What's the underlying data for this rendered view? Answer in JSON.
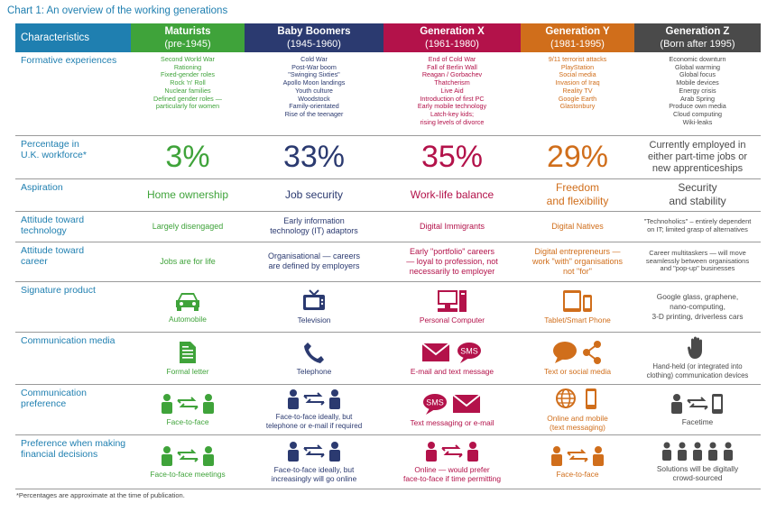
{
  "title": "Chart 1: An overview of the working generations",
  "footnote": "*Percentages are approximate at the time of publication.",
  "headers": {
    "characteristics": "Characteristics",
    "generations": [
      {
        "name": "Maturists",
        "years": "(pre-1945)"
      },
      {
        "name": "Baby Boomers",
        "years": "(1945-1960)"
      },
      {
        "name": "Generation X",
        "years": "(1961-1980)"
      },
      {
        "name": "Generation Y",
        "years": "(1981-1995)"
      },
      {
        "name": "Generation Z",
        "years": "(Born after 1995)"
      }
    ]
  },
  "colors": {
    "maturists": "#3fa33a",
    "boomers": "#2b3a70",
    "genx": "#b3124a",
    "geny": "#d06e1b",
    "genz": "#4a4a4a",
    "characteristics": "#1f7fb0"
  },
  "rows": {
    "formative": {
      "label": "Formative experiences",
      "values": [
        "Second World War\nRationing\nFixed-gender roles\nRock 'n' Roll\nNuclear families\nDefined gender roles —\nparticularly for women",
        "Cold War\nPost-War boom\n\"Swinging Sixties\"\nApollo Moon landings\nYouth culture\nWoodstock\nFamily-orientated\nRise of the teenager",
        "End of Cold War\nFall of Berlin Wall\nReagan / Gorbachev\nThatcherism\nLive Aid\nIntroduction of first PC\nEarly mobile technology\nLatch-key kids;\nrising levels of divorce",
        "9/11 terrorist attacks\nPlayStation\nSocial media\nInvasion of Iraq\nReality TV\nGoogle Earth\nGlastonbury",
        "Economic downturn\nGlobal warming\nGlobal focus\nMobile devices\nEnergy crisis\nArab Spring\nProduce own media\nCloud computing\nWiki-leaks"
      ]
    },
    "percentage": {
      "label": "Percentage in\nU.K. workforce*",
      "values": [
        "3%",
        "33%",
        "35%",
        "29%",
        "Currently employed in\neither part-time jobs or\nnew apprenticeships"
      ]
    },
    "aspiration": {
      "label": "Aspiration",
      "values": [
        "Home ownership",
        "Job security",
        "Work-life balance",
        "Freedom\nand flexibility",
        "Security\nand stability"
      ]
    },
    "technology": {
      "label": "Attitude toward\ntechnology",
      "values": [
        "Largely disengaged",
        "Early information\ntechnology (IT) adaptors",
        "Digital Immigrants",
        "Digital Natives",
        "\"Technoholics\" – entirely dependent\non IT; limited grasp of alternatives"
      ]
    },
    "career": {
      "label": "Attitude toward\ncareer",
      "values": [
        "Jobs are for life",
        "Organisational — careers\nare defined by employers",
        "Early \"portfolio\" careers\n— loyal to profession, not\nnecessarily to employer",
        "Digital entrepreneurs —\nwork \"with\" organisations\nnot \"for\"",
        "Career multitaskers — will move\nseamlessly between organisations\nand \"pop-up\" businesses"
      ]
    },
    "product": {
      "label": "Signature product",
      "values": [
        "Automobile",
        "Television",
        "Personal Computer",
        "Tablet/Smart Phone",
        "Google glass, graphene,\nnano-computing,\n3-D printing, driverless cars"
      ],
      "icons": [
        "car-icon",
        "television-icon",
        "computer-icon",
        "tablet-phone-icon"
      ]
    },
    "media": {
      "label": "Communication media",
      "values": [
        "Formal letter",
        "Telephone",
        "E-mail and text message",
        "Text or social media",
        "Hand-held (or integrated into\nclothing) communication devices"
      ],
      "icons": [
        "letter-icon",
        "telephone-icon",
        "email-sms-icon",
        "chat-share-icon",
        "hand-icon"
      ],
      "sms": "SMS"
    },
    "preference": {
      "label": "Communication\npreference",
      "values": [
        "Face-to-face",
        "Face-to-face ideally, but\ntelephone or e-mail if required",
        "Text messaging or e-mail",
        "Online and mobile\n(text messaging)",
        "Facetime"
      ],
      "icons": [
        "people-exchange-icon",
        "people-exchange-icon",
        "sms-email-icon",
        "globe-phone-icon",
        "person-device-icon"
      ],
      "sms": "SMS"
    },
    "financial": {
      "label": "Preference when making\nfinancial decisions",
      "values": [
        "Face-to-face meetings",
        "Face-to-face ideally, but\nincreasingly will go online",
        "Online — would prefer\nface-to-face if time permitting",
        "Face-to-face",
        "Solutions will be digitally\ncrowd-sourced"
      ],
      "icons": [
        "people-exchange-icon",
        "people-exchange-icon",
        "people-exchange-icon",
        "people-exchange-icon",
        "group-people-icon"
      ]
    }
  }
}
